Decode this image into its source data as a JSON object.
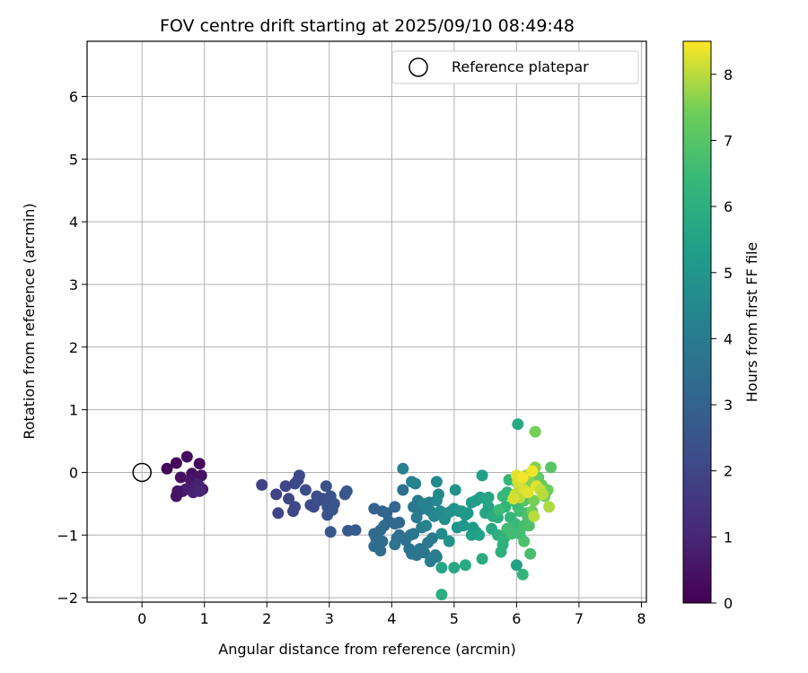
{
  "chart_data": {
    "type": "scatter",
    "title": "FOV centre drift starting at 2025/09/10 08:49:48",
    "xlabel": "Angular distance from reference (arcmin)",
    "ylabel": "Rotation from reference (arcmin)",
    "xlim": [
      -0.88,
      8.08
    ],
    "ylim": [
      -2.07,
      6.88
    ],
    "xticks": [
      "0",
      "1",
      "2",
      "3",
      "4",
      "5",
      "6",
      "7",
      "8"
    ],
    "yticks": [
      "−2",
      "−1",
      "0",
      "1",
      "2",
      "3",
      "4",
      "5",
      "6"
    ],
    "grid": true,
    "legend": {
      "position": "top-right",
      "entries": [
        {
          "label": "Reference platepar",
          "marker": "open-circle"
        }
      ]
    },
    "reference": {
      "x": 0,
      "y": 0
    },
    "colorbar": {
      "label": "Hours from first FF file",
      "range": [
        0,
        8.5
      ],
      "ticks": [
        "0",
        "1",
        "2",
        "3",
        "4",
        "5",
        "6",
        "7",
        "8"
      ],
      "colormap": "viridis"
    },
    "points": [
      [
        0.4,
        0.06,
        0.1
      ],
      [
        0.55,
        0.15,
        0.2
      ],
      [
        0.72,
        0.25,
        0.3
      ],
      [
        0.92,
        0.14,
        0.3
      ],
      [
        0.62,
        -0.08,
        0.4
      ],
      [
        0.8,
        -0.02,
        0.4
      ],
      [
        0.95,
        -0.05,
        0.5
      ],
      [
        0.55,
        -0.38,
        0.5
      ],
      [
        0.65,
        -0.3,
        0.6
      ],
      [
        0.78,
        -0.12,
        0.6
      ],
      [
        0.85,
        -0.25,
        0.7
      ],
      [
        0.97,
        -0.27,
        0.7
      ],
      [
        0.7,
        -0.27,
        0.8
      ],
      [
        0.82,
        -0.32,
        0.9
      ],
      [
        0.9,
        -0.2,
        0.9
      ],
      [
        0.92,
        -0.3,
        1.0
      ],
      [
        0.57,
        -0.3,
        0.5
      ],
      [
        1.92,
        -0.2,
        1.8
      ],
      [
        2.15,
        -0.35,
        1.9
      ],
      [
        2.18,
        -0.65,
        1.9
      ],
      [
        2.3,
        -0.22,
        2.0
      ],
      [
        2.35,
        -0.42,
        2.0
      ],
      [
        2.42,
        -0.62,
        2.0
      ],
      [
        2.45,
        -0.18,
        2.1
      ],
      [
        2.5,
        -0.12,
        2.1
      ],
      [
        2.52,
        -0.05,
        2.1
      ],
      [
        2.45,
        -0.55,
        2.1
      ],
      [
        2.62,
        -0.28,
        2.2
      ],
      [
        2.7,
        -0.52,
        2.2
      ],
      [
        2.75,
        -0.55,
        2.2
      ],
      [
        2.8,
        -0.38,
        2.3
      ],
      [
        2.82,
        -0.45,
        2.3
      ],
      [
        2.9,
        -0.42,
        2.3
      ],
      [
        2.95,
        -0.22,
        2.4
      ],
      [
        2.97,
        -0.55,
        2.4
      ],
      [
        3.02,
        -0.38,
        2.4
      ],
      [
        3.05,
        -0.6,
        2.4
      ],
      [
        3.08,
        -0.5,
        2.5
      ],
      [
        2.97,
        -0.68,
        2.5
      ],
      [
        3.25,
        -0.35,
        2.5
      ],
      [
        3.28,
        -0.3,
        2.6
      ],
      [
        3.02,
        -0.95,
        2.6
      ],
      [
        3.3,
        -0.93,
        2.7
      ],
      [
        3.42,
        -0.92,
        2.8
      ],
      [
        3.72,
        -0.58,
        3.0
      ],
      [
        3.85,
        -0.62,
        3.0
      ],
      [
        3.92,
        -0.65,
        3.1
      ],
      [
        4.05,
        -0.55,
        3.1
      ],
      [
        3.95,
        -0.78,
        3.1
      ],
      [
        4.05,
        -0.82,
        3.2
      ],
      [
        4.12,
        -0.8,
        3.2
      ],
      [
        3.88,
        -0.85,
        3.2
      ],
      [
        3.82,
        -0.92,
        3.3
      ],
      [
        3.72,
        -0.98,
        3.3
      ],
      [
        3.75,
        -1.05,
        3.3
      ],
      [
        3.85,
        -1.1,
        3.4
      ],
      [
        3.72,
        -1.18,
        3.4
      ],
      [
        3.82,
        -1.25,
        3.4
      ],
      [
        4.08,
        -1.05,
        3.5
      ],
      [
        4.12,
        -1.0,
        3.5
      ],
      [
        4.18,
        -0.28,
        3.5
      ],
      [
        4.22,
        -1.08,
        3.6
      ],
      [
        4.28,
        -1.22,
        3.6
      ],
      [
        4.32,
        -1.3,
        3.6
      ],
      [
        4.4,
        -1.32,
        3.7
      ],
      [
        4.05,
        -1.15,
        3.6
      ],
      [
        4.3,
        -1.0,
        3.7
      ],
      [
        4.35,
        -0.98,
        3.7
      ],
      [
        4.45,
        -1.22,
        3.8
      ],
      [
        4.52,
        -1.28,
        3.8
      ],
      [
        4.58,
        -1.12,
        3.9
      ],
      [
        4.65,
        -1.05,
        3.9
      ],
      [
        4.7,
        -1.32,
        4.0
      ],
      [
        4.62,
        -1.42,
        4.0
      ],
      [
        4.72,
        -1.35,
        4.1
      ],
      [
        4.35,
        -0.55,
        3.8
      ],
      [
        4.42,
        -0.45,
        3.9
      ],
      [
        4.45,
        -0.6,
        3.9
      ],
      [
        4.4,
        -0.72,
        4.0
      ],
      [
        4.48,
        -0.88,
        4.0
      ],
      [
        4.55,
        -0.58,
        4.1
      ],
      [
        4.6,
        -0.48,
        4.1
      ],
      [
        4.62,
        -0.62,
        4.2
      ],
      [
        4.18,
        0.06,
        4.2
      ],
      [
        4.32,
        -0.15,
        4.2
      ],
      [
        4.38,
        -0.18,
        4.3
      ],
      [
        4.5,
        -0.5,
        4.3
      ],
      [
        4.55,
        -0.85,
        4.3
      ],
      [
        4.68,
        -0.7,
        4.4
      ],
      [
        4.72,
        -0.45,
        4.4
      ],
      [
        4.75,
        -0.35,
        4.5
      ],
      [
        4.72,
        -0.15,
        4.5
      ],
      [
        4.78,
        -0.62,
        4.6
      ],
      [
        4.8,
        -0.98,
        4.6
      ],
      [
        4.85,
        -0.75,
        4.7
      ],
      [
        4.9,
        -0.65,
        4.7
      ],
      [
        4.95,
        -0.62,
        4.8
      ],
      [
        5.0,
        -0.58,
        4.8
      ],
      [
        5.02,
        -0.28,
        4.9
      ],
      [
        5.05,
        -0.88,
        4.9
      ],
      [
        4.92,
        -1.1,
        4.9
      ],
      [
        5.08,
        -0.62,
        5.0
      ],
      [
        5.12,
        -0.62,
        5.0
      ],
      [
        5.15,
        -0.85,
        5.0
      ],
      [
        5.18,
        -0.68,
        5.1
      ],
      [
        5.22,
        -0.65,
        5.1
      ],
      [
        5.28,
        -0.48,
        5.2
      ],
      [
        5.3,
        -0.88,
        5.2
      ],
      [
        5.35,
        -0.95,
        5.3
      ],
      [
        5.35,
        -0.45,
        5.3
      ],
      [
        5.42,
        -0.4,
        5.4
      ],
      [
        5.45,
        -0.05,
        5.4
      ],
      [
        5.5,
        -0.42,
        5.5
      ],
      [
        5.55,
        -0.4,
        5.6
      ],
      [
        5.5,
        -0.65,
        5.6
      ],
      [
        5.55,
        -0.55,
        5.6
      ],
      [
        5.4,
        -1.0,
        5.5
      ],
      [
        5.28,
        -1.0,
        5.4
      ],
      [
        4.8,
        -1.52,
        5.6
      ],
      [
        5.0,
        -1.52,
        5.7
      ],
      [
        5.18,
        -1.48,
        5.8
      ],
      [
        5.45,
        -1.38,
        5.9
      ],
      [
        4.8,
        -1.95,
        6.0
      ],
      [
        5.6,
        -0.9,
        5.8
      ],
      [
        5.62,
        -0.7,
        5.9
      ],
      [
        5.7,
        -0.72,
        6.0
      ],
      [
        5.7,
        -1.0,
        6.0
      ],
      [
        5.75,
        -1.27,
        6.1
      ],
      [
        5.78,
        -1.15,
        6.1
      ],
      [
        5.8,
        -1.05,
        6.2
      ],
      [
        5.82,
        -0.55,
        6.2
      ],
      [
        5.85,
        -0.32,
        6.2
      ],
      [
        5.88,
        -0.12,
        6.3
      ],
      [
        5.9,
        -0.72,
        6.3
      ],
      [
        5.95,
        -0.45,
        6.4
      ],
      [
        5.98,
        -0.82,
        6.4
      ],
      [
        6.0,
        -0.15,
        6.5
      ],
      [
        6.02,
        -0.55,
        6.5
      ],
      [
        6.05,
        -0.62,
        6.6
      ],
      [
        6.1,
        -0.25,
        6.6
      ],
      [
        6.05,
        -0.98,
        6.6
      ],
      [
        6.12,
        -0.85,
        6.7
      ],
      [
        6.15,
        -0.65,
        6.7
      ],
      [
        6.18,
        -0.72,
        6.8
      ],
      [
        6.2,
        -0.85,
        6.8
      ],
      [
        6.08,
        -0.3,
        6.9
      ],
      [
        6.12,
        -0.45,
        6.9
      ],
      [
        6.02,
        0.77,
        5.8
      ],
      [
        6.0,
        -1.48,
        5.5
      ],
      [
        6.1,
        -1.63,
        6.3
      ],
      [
        6.12,
        -1.1,
        6.8
      ],
      [
        6.22,
        -1.3,
        6.7
      ],
      [
        5.92,
        -0.98,
        6.6
      ],
      [
        5.78,
        -0.38,
        6.4
      ],
      [
        5.72,
        -0.6,
        6.5
      ],
      [
        5.85,
        -0.9,
        6.6
      ],
      [
        6.3,
        0.65,
        7.5
      ],
      [
        6.35,
        -0.08,
        7.2
      ],
      [
        6.4,
        -0.2,
        7.3
      ],
      [
        6.45,
        -0.38,
        7.4
      ],
      [
        6.5,
        -0.28,
        7.4
      ],
      [
        6.55,
        0.08,
        7.0
      ],
      [
        6.52,
        -0.55,
        7.9
      ],
      [
        6.3,
        0.08,
        7.6
      ],
      [
        6.28,
        -0.45,
        7.5
      ],
      [
        6.25,
        -0.62,
        7.4
      ],
      [
        6.2,
        -0.15,
        7.6
      ],
      [
        6.15,
        -0.05,
        7.7
      ],
      [
        6.08,
        -0.12,
        7.8
      ],
      [
        6.05,
        -0.22,
        8.0
      ],
      [
        6.02,
        -0.15,
        8.2
      ],
      [
        6.0,
        -0.05,
        8.3
      ],
      [
        5.98,
        -0.35,
        8.1
      ],
      [
        6.05,
        -0.4,
        8.0
      ],
      [
        6.12,
        -0.28,
        8.2
      ],
      [
        6.18,
        -0.32,
        8.3
      ],
      [
        6.25,
        0.02,
        8.4
      ],
      [
        6.28,
        -0.7,
        8.0
      ],
      [
        6.32,
        -0.22,
        8.3
      ],
      [
        6.38,
        -0.28,
        8.1
      ],
      [
        6.42,
        -0.35,
        8.0
      ],
      [
        6.1,
        -0.08,
        8.4
      ],
      [
        5.95,
        -0.42,
        8.2
      ]
    ]
  }
}
